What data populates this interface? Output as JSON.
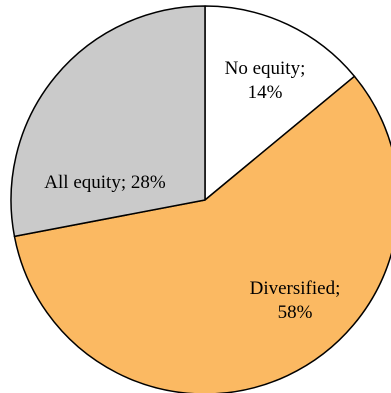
{
  "chart_data": {
    "type": "pie",
    "slices": [
      {
        "name": "No equity",
        "value": 14,
        "label_lines": [
          "No equity;",
          "14%"
        ],
        "color": "#ffffff"
      },
      {
        "name": "Diversified",
        "value": 58,
        "label_lines": [
          "Diversified;",
          "58%"
        ],
        "color": "#fbb962"
      },
      {
        "name": "All equity",
        "value": 28,
        "label_lines": [
          "All equity; 28%"
        ],
        "color": "#cacaca"
      }
    ],
    "start": "12 o'clock",
    "direction": "clockwise",
    "legend": "none"
  }
}
